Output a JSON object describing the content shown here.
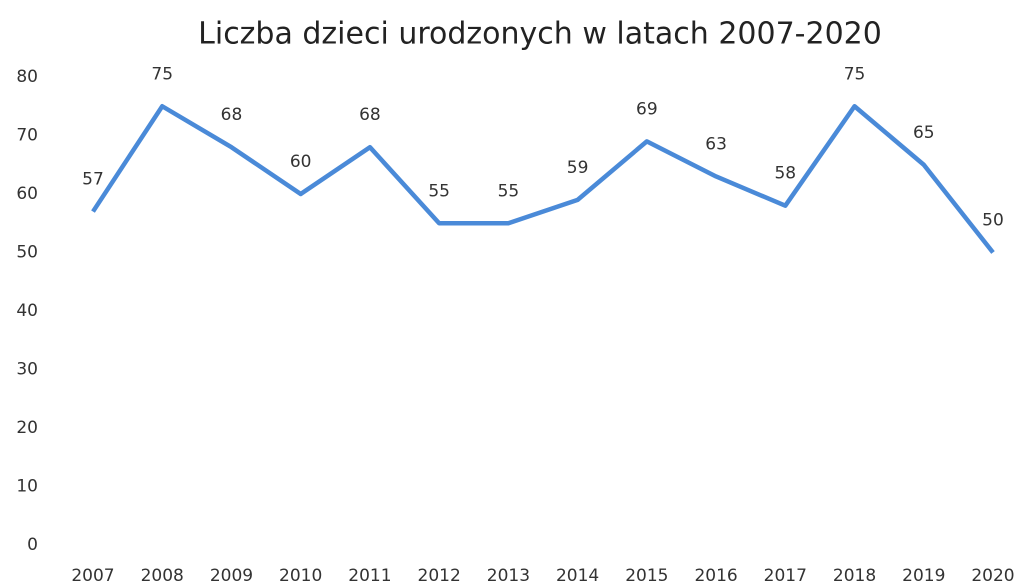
{
  "chart_data": {
    "type": "line",
    "title": "Liczba dzieci urodzonych w latach 2007-2020",
    "categories": [
      "2007",
      "2008",
      "2009",
      "2010",
      "2011",
      "2012",
      "2013",
      "2014",
      "2015",
      "2016",
      "2017",
      "2018",
      "2019",
      "2020"
    ],
    "values": [
      57,
      75,
      68,
      60,
      68,
      55,
      55,
      59,
      69,
      63,
      58,
      75,
      65,
      50
    ],
    "color": "#4a8ad8",
    "ylim": [
      0,
      80
    ],
    "yticks": [
      0,
      10,
      20,
      30,
      40,
      50,
      60,
      70,
      80
    ],
    "grid": false
  }
}
